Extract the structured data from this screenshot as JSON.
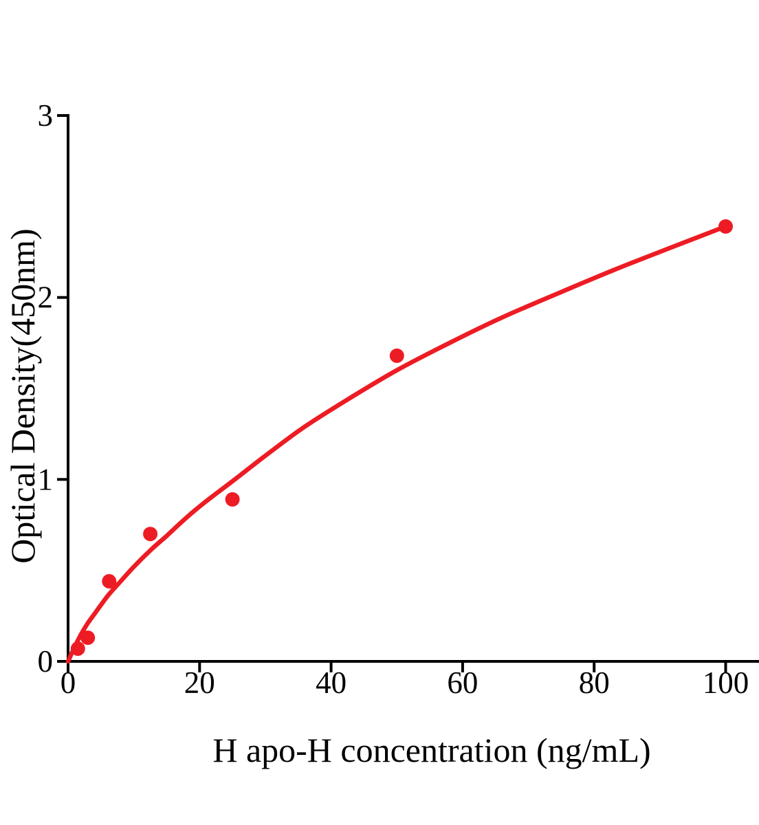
{
  "figure": {
    "background": "#ffffff"
  },
  "chart_data": {
    "type": "scatter",
    "title": "",
    "xlabel": "H apo-H concentration (ng/mL)",
    "ylabel": "Optical Density(450nm)",
    "xlim": [
      0,
      105
    ],
    "ylim": [
      0,
      3
    ],
    "x_ticks": [
      "0",
      "20",
      "40",
      "60",
      "80",
      "100"
    ],
    "x_tick_values": [
      0,
      20,
      40,
      60,
      80,
      100
    ],
    "y_ticks": [
      "0",
      "1",
      "2",
      "3"
    ],
    "y_tick_values": [
      0,
      1,
      2,
      3
    ],
    "grid": false,
    "legend": null,
    "axis_color": "#000000",
    "accent_color": "#ED1C24",
    "series": [
      {
        "name": "standard-data-points",
        "type": "scatter",
        "marker": "circle",
        "color": "#ED1C24",
        "x": [
          1.5,
          3,
          6.25,
          12.5,
          25,
          50,
          100
        ],
        "y": [
          0.07,
          0.13,
          0.44,
          0.7,
          0.89,
          1.68,
          2.39
        ]
      },
      {
        "name": "fitted-curve",
        "type": "line",
        "color": "#ED1C24",
        "x": [
          0,
          1,
          2,
          3,
          4,
          5,
          6.25,
          8,
          10,
          12.5,
          15,
          18,
          21,
          25,
          30,
          36,
          43,
          50,
          58,
          66,
          75,
          85,
          100
        ],
        "y": [
          0.0,
          0.08,
          0.15,
          0.21,
          0.26,
          0.31,
          0.37,
          0.44,
          0.52,
          0.61,
          0.69,
          0.79,
          0.88,
          0.99,
          1.13,
          1.29,
          1.45,
          1.6,
          1.75,
          1.89,
          2.03,
          2.18,
          2.39
        ]
      }
    ]
  }
}
